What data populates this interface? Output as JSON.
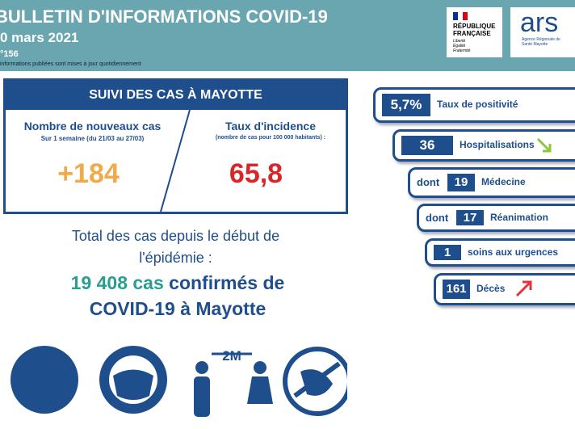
{
  "header": {
    "title": "BULLETIN D'INFORMATIONS COVID-19",
    "date": "0 mars 2021",
    "number": "°156",
    "note": "informations publiées sont mises à jour quotidiennement",
    "logo_rf": {
      "title": "RÉPUBLIQUE FRANÇAISE",
      "motto": "Liberté Égalité Fraternité"
    },
    "logo_ars": {
      "title": "ars",
      "subtitle": "Agence Régionale de Santé Mayotte"
    }
  },
  "cases_box": {
    "title": "SUIVI DES CAS À MAYOTTE",
    "new_cases": {
      "label": "Nombre de nouveaux cas",
      "sublabel": "Sur 1 semaine (du 21/03 au 27/03)",
      "value": "+184"
    },
    "incidence": {
      "label": "Taux d'incidence",
      "sublabel": "(nombre de cas pour 100 000 habitants) :",
      "value": "65,8"
    }
  },
  "total": {
    "intro": "Total des cas depuis le début de l'épidémie :",
    "count": "19 408 cas",
    "rest": "confirmés de COVID-19 à Mayotte"
  },
  "indicators": [
    {
      "value": "5,7%",
      "label": "Taux de positivité"
    },
    {
      "value": "36",
      "label": "Hospitalisations"
    },
    {
      "prefix": "dont",
      "value": "19",
      "label": "Médecine"
    },
    {
      "prefix": "dont",
      "value": "17",
      "label": "Réanimation"
    },
    {
      "value": "1",
      "label": "soins aux urgences"
    },
    {
      "value": "161",
      "label": "Décès"
    }
  ],
  "icons": {
    "distance": "2M"
  }
}
